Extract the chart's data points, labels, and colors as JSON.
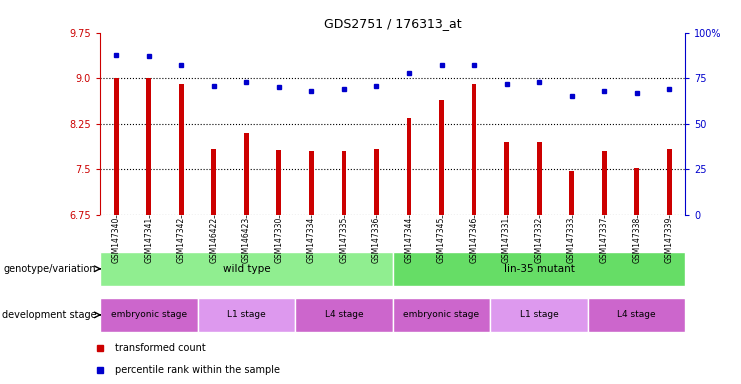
{
  "title": "GDS2751 / 176313_at",
  "samples": [
    "GSM147340",
    "GSM147341",
    "GSM147342",
    "GSM146422",
    "GSM146423",
    "GSM147330",
    "GSM147334",
    "GSM147335",
    "GSM147336",
    "GSM147344",
    "GSM147345",
    "GSM147346",
    "GSM147331",
    "GSM147332",
    "GSM147333",
    "GSM147337",
    "GSM147338",
    "GSM147339"
  ],
  "transformed_count": [
    9.0,
    9.0,
    8.9,
    7.83,
    8.1,
    7.82,
    7.8,
    7.8,
    7.83,
    8.35,
    8.65,
    8.9,
    7.95,
    7.95,
    7.48,
    7.8,
    7.53,
    7.83
  ],
  "percentile_rank": [
    88,
    87,
    82,
    71,
    73,
    70,
    68,
    69,
    71,
    78,
    82,
    82,
    72,
    73,
    65,
    68,
    67,
    69
  ],
  "ylim_left": [
    6.75,
    9.75
  ],
  "ylim_right": [
    0,
    100
  ],
  "yticks_left": [
    6.75,
    7.5,
    8.25,
    9.0,
    9.75
  ],
  "yticks_right": [
    0,
    25,
    50,
    75,
    100
  ],
  "bar_color": "#cc0000",
  "dot_color": "#0000cc",
  "grid_color": "#000000",
  "bg_color": "#ffffff",
  "xticklabel_bg": "#c8c8c8",
  "geno_color_wt": "#90ee90",
  "geno_color_mut": "#66dd66",
  "dev_color_embryo": "#cc66cc",
  "dev_color_L1": "#dd99ee",
  "dev_color_L4": "#cc66cc",
  "geno_labels": [
    "wild type",
    "lin-35 mutant"
  ],
  "geno_ranges": [
    [
      0,
      9
    ],
    [
      9,
      18
    ]
  ],
  "dev_labels": [
    "embryonic stage",
    "L1 stage",
    "L4 stage",
    "embryonic stage",
    "L1 stage",
    "L4 stage"
  ],
  "dev_ranges": [
    [
      0,
      3
    ],
    [
      3,
      6
    ],
    [
      6,
      9
    ],
    [
      9,
      12
    ],
    [
      12,
      15
    ],
    [
      15,
      18
    ]
  ],
  "dev_colors": [
    "#cc66cc",
    "#dd99ee",
    "#cc66cc",
    "#cc66cc",
    "#dd99ee",
    "#cc66cc"
  ]
}
